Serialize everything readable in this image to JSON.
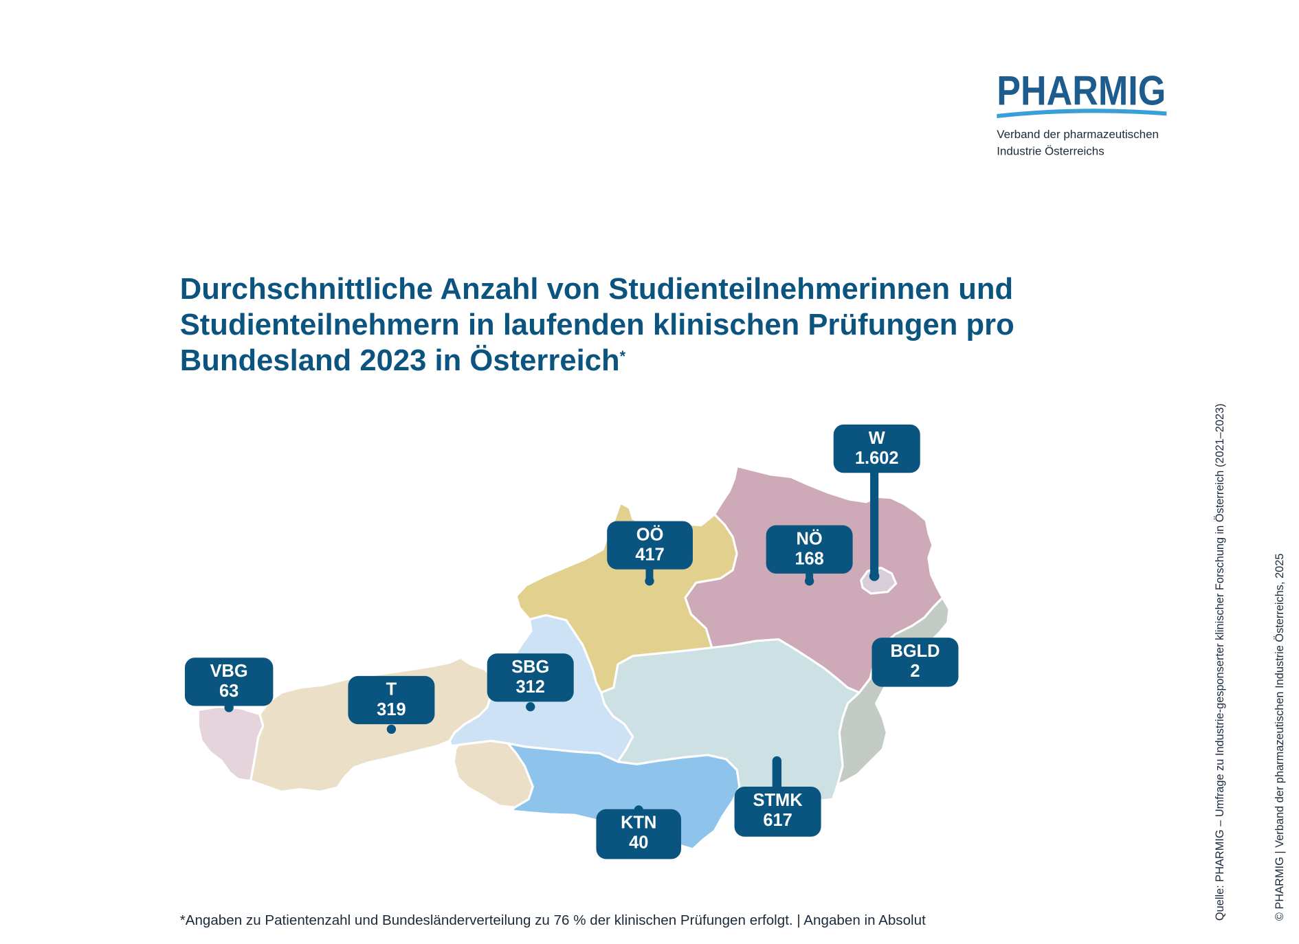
{
  "logo": {
    "name": "PHARMIG",
    "tagline_line1": "Verband der pharmazeutischen",
    "tagline_line2": "Industrie Österreichs"
  },
  "title": {
    "lines": [
      "Durchschnittliche Anzahl von Studienteilnehmerinnen und",
      "Studienteilnehmern in laufenden klinischen Prüfungen pro",
      "Bundesland 2023 in Österreich"
    ],
    "footnote_mark": "*"
  },
  "regions": [
    {
      "label": "VBG",
      "value": "63",
      "color": "#e5d4dc"
    },
    {
      "label": "T",
      "value": "319",
      "color": "#ecdfc8"
    },
    {
      "label": "SBG",
      "value": "312",
      "color": "#cde2f5"
    },
    {
      "label": "OÖ",
      "value": "417",
      "color": "#e2d08f"
    },
    {
      "label": "NÖ",
      "value": "168",
      "color": "#ceaab8"
    },
    {
      "label": "W",
      "value": "1.602",
      "color": "#d9cdd9"
    },
    {
      "label": "BGLD",
      "value": "2",
      "color": "#c3cbc5"
    },
    {
      "label": "STMK",
      "value": "617",
      "color": "#cde0e4"
    },
    {
      "label": "KTN",
      "value": "40",
      "color": "#8ec4ec"
    }
  ],
  "footnote": "*Angaben zu Patientenzahl und Bundesländerverteilung zu 76 % der klinischen Prüfungen erfolgt. | Angaben in Absolut",
  "source": "Quelle: PHARMIG – Umfrage zu Industrie-gesponserter klinischer Forschung in Österreich (2021–2023)",
  "copyright": "© PHARMIG | Verband der pharmazeutischen Industrie Österreichs, 2025",
  "colors": {
    "brand_dark_blue": "#1d5c8c",
    "brand_light_blue": "#3a9fd8",
    "title": "#0c5480",
    "label_box": "#0a5580",
    "region_border": "#ffffff"
  }
}
